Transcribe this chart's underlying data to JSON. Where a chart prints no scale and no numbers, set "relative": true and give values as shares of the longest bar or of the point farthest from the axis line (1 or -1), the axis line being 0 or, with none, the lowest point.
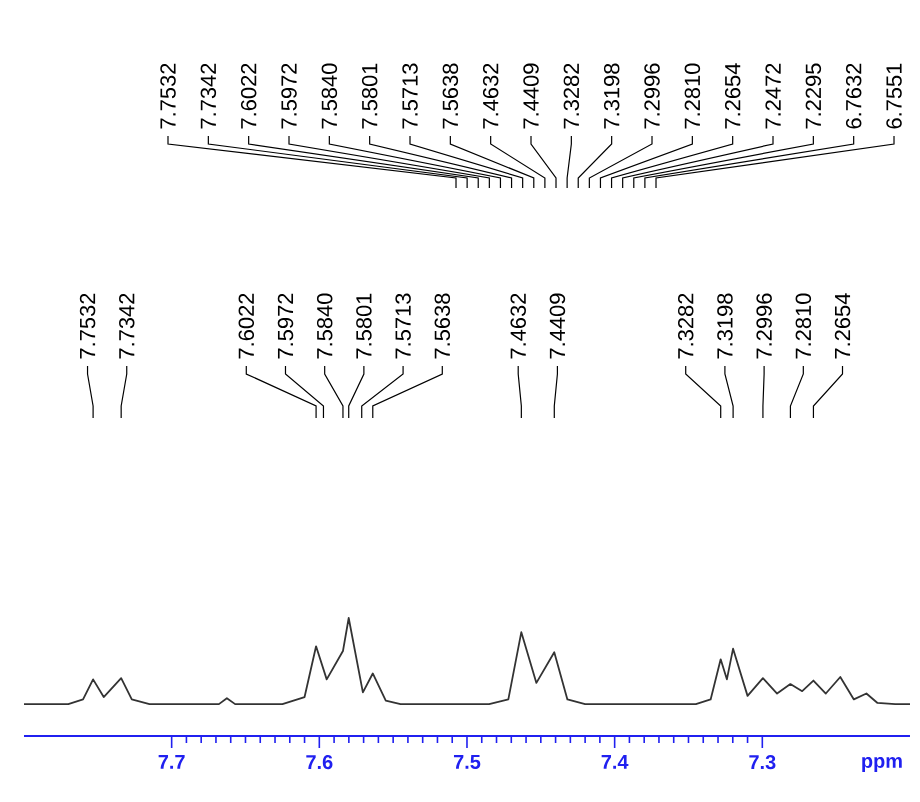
{
  "chart_data": {
    "type": "line",
    "relative": true,
    "xlabel": "ppm",
    "xlim": [
      7.8,
      7.2
    ],
    "xticks": [
      7.7,
      7.6,
      7.5,
      7.4,
      7.3
    ],
    "series": [
      {
        "color": "#333333",
        "x": [
          7.8,
          7.77,
          7.76,
          7.7532,
          7.746,
          7.7342,
          7.727,
          7.715,
          7.668,
          7.6626,
          7.657,
          7.625,
          7.61,
          7.6022,
          7.595,
          7.584,
          7.5801,
          7.5705,
          7.5638,
          7.555,
          7.545,
          7.485,
          7.472,
          7.4632,
          7.453,
          7.4409,
          7.432,
          7.42,
          7.345,
          7.335,
          7.3282,
          7.324,
          7.3198,
          7.31,
          7.2996,
          7.29,
          7.281,
          7.273,
          7.2654,
          7.257,
          7.2472,
          7.238,
          7.2295,
          7.222,
          7.21,
          7.2
        ],
        "values": [
          0.27,
          0.27,
          0.31,
          0.48,
          0.33,
          0.49,
          0.31,
          0.27,
          0.27,
          0.32,
          0.27,
          0.27,
          0.33,
          0.76,
          0.48,
          0.72,
          1.0,
          0.37,
          0.53,
          0.3,
          0.27,
          0.27,
          0.31,
          0.88,
          0.45,
          0.71,
          0.31,
          0.27,
          0.27,
          0.31,
          0.65,
          0.48,
          0.74,
          0.34,
          0.49,
          0.36,
          0.44,
          0.38,
          0.47,
          0.36,
          0.5,
          0.31,
          0.36,
          0.28,
          0.27,
          0.27
        ]
      }
    ],
    "annotations": [
      "7.7532",
      "7.7342",
      "7.6022",
      "7.5972",
      "7.5840",
      "7.5801",
      "7.5713",
      "7.5638",
      "7.4632",
      "7.4409",
      "7.3282",
      "7.3198",
      "7.2996",
      "7.2810",
      "7.2654",
      "7.2472",
      "7.2295",
      "6.7632",
      "6.7551",
      {
        "text": "7.7532",
        "x": 7.7532
      },
      {
        "text": "7.7342",
        "x": 7.7342
      },
      {
        "text": "7.6022",
        "x": 7.6022
      },
      {
        "text": "7.5972",
        "x": 7.5972
      },
      {
        "text": "7.5840",
        "x": 7.584
      },
      {
        "text": "7.5801",
        "x": 7.5801
      },
      {
        "text": "7.5713",
        "x": 7.5713
      },
      {
        "text": "7.5638",
        "x": 7.5638
      },
      {
        "text": "7.4632",
        "x": 7.4632
      },
      {
        "text": "7.4409",
        "x": 7.4409
      },
      {
        "text": "7.3282",
        "x": 7.3282
      },
      {
        "text": "7.3198",
        "x": 7.3198
      },
      {
        "text": "7.2996",
        "x": 7.2996
      },
      {
        "text": "7.2810",
        "x": 7.281
      },
      {
        "text": "7.2654",
        "x": 7.2654
      }
    ]
  }
}
